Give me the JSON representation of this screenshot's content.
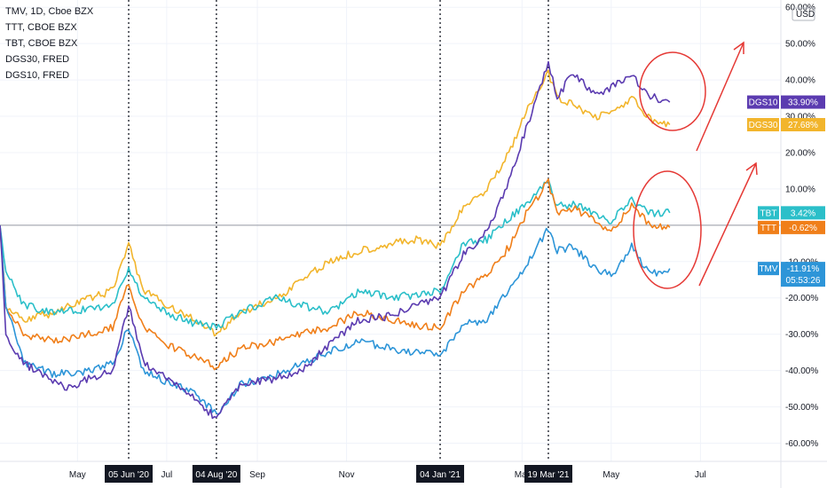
{
  "legend": [
    "TMV, 1D, Cboe BZX",
    "TTT, CBOE BZX",
    "TBT, CBOE BZX",
    "DGS30, FRED",
    "DGS10, FRED"
  ],
  "currency": "USD",
  "colors": {
    "DGS10": "#5b3bb0",
    "DGS30": "#f2b52c",
    "TBT": "#2bbfc9",
    "TTT": "#f07f1a",
    "TMV": "#2d95d8",
    "annot": "#e53935"
  },
  "chart_data": {
    "type": "line",
    "y_tick_labels": [
      "60.00%",
      "50.00%",
      "40.00%",
      "30.00%",
      "20.00%",
      "10.00%",
      "-10.00%",
      "-20.00%",
      "-30.00%",
      "-40.00%",
      "-50.00%",
      "-60.00%"
    ],
    "y_ticks": [
      60,
      50,
      40,
      30,
      20,
      10,
      -10,
      -20,
      -30,
      -40,
      -50,
      -60
    ],
    "ylim": [
      -65,
      62
    ],
    "x_tick_labels": [
      {
        "label": "May",
        "date": "2020-05-01"
      },
      {
        "label": "Jul",
        "date": "2020-07-01"
      },
      {
        "label": "Sep",
        "date": "2020-09-01"
      },
      {
        "label": "Nov",
        "date": "2020-11-01"
      },
      {
        "label": "Mar",
        "date": "2021-03-01"
      },
      {
        "label": "May",
        "date": "2021-05-01"
      },
      {
        "label": "Jul",
        "date": "2021-07-01"
      }
    ],
    "highlight_dates": [
      {
        "label": "05 Jun '20",
        "date": "2020-06-05"
      },
      {
        "label": "04 Aug '20",
        "date": "2020-08-04"
      },
      {
        "label": "04 Jan '21",
        "date": "2021-01-04"
      },
      {
        "label": "19 Mar '21",
        "date": "2021-03-19"
      }
    ],
    "xlim": [
      "2020-03-09",
      "2021-08-25"
    ],
    "series": [
      {
        "name": "DGS10",
        "last": "33.90%",
        "points": [
          [
            "2020-03-09",
            0
          ],
          [
            "2020-03-13",
            -30
          ],
          [
            "2020-03-25",
            -38
          ],
          [
            "2020-04-10",
            -42
          ],
          [
            "2020-04-25",
            -45
          ],
          [
            "2020-05-10",
            -42
          ],
          [
            "2020-05-25",
            -40
          ],
          [
            "2020-06-05",
            -22
          ],
          [
            "2020-06-15",
            -38
          ],
          [
            "2020-07-01",
            -42
          ],
          [
            "2020-07-20",
            -48
          ],
          [
            "2020-08-04",
            -53
          ],
          [
            "2020-08-20",
            -44
          ],
          [
            "2020-09-15",
            -42
          ],
          [
            "2020-10-01",
            -40
          ],
          [
            "2020-10-20",
            -33
          ],
          [
            "2020-11-10",
            -26
          ],
          [
            "2020-12-01",
            -25
          ],
          [
            "2020-12-20",
            -22
          ],
          [
            "2021-01-04",
            -20
          ],
          [
            "2021-01-20",
            -8
          ],
          [
            "2021-02-05",
            -2
          ],
          [
            "2021-02-20",
            12
          ],
          [
            "2021-03-05",
            28
          ],
          [
            "2021-03-19",
            45
          ],
          [
            "2021-03-25",
            35
          ],
          [
            "2021-04-05",
            42
          ],
          [
            "2021-04-20",
            36
          ],
          [
            "2021-05-01",
            38
          ],
          [
            "2021-05-15",
            42
          ],
          [
            "2021-05-25",
            36
          ],
          [
            "2021-06-01",
            35
          ],
          [
            "2021-06-10",
            33.9
          ]
        ]
      },
      {
        "name": "DGS30",
        "last": "27.68%",
        "points": [
          [
            "2020-03-09",
            0
          ],
          [
            "2020-03-13",
            -22
          ],
          [
            "2020-03-25",
            -26
          ],
          [
            "2020-04-15",
            -24
          ],
          [
            "2020-05-10",
            -20
          ],
          [
            "2020-05-25",
            -18
          ],
          [
            "2020-06-05",
            -5
          ],
          [
            "2020-06-15",
            -18
          ],
          [
            "2020-07-01",
            -22
          ],
          [
            "2020-07-20",
            -26
          ],
          [
            "2020-08-04",
            -30
          ],
          [
            "2020-08-20",
            -24
          ],
          [
            "2020-09-15",
            -20
          ],
          [
            "2020-10-01",
            -15
          ],
          [
            "2020-10-20",
            -10
          ],
          [
            "2020-11-10",
            -7
          ],
          [
            "2020-12-01",
            -5
          ],
          [
            "2020-12-20",
            -4
          ],
          [
            "2021-01-04",
            -6
          ],
          [
            "2021-01-20",
            5
          ],
          [
            "2021-02-05",
            10
          ],
          [
            "2021-02-20",
            20
          ],
          [
            "2021-03-05",
            32
          ],
          [
            "2021-03-19",
            42
          ],
          [
            "2021-03-25",
            35
          ],
          [
            "2021-04-05",
            33
          ],
          [
            "2021-04-20",
            30
          ],
          [
            "2021-05-01",
            31
          ],
          [
            "2021-05-15",
            35
          ],
          [
            "2021-05-25",
            30
          ],
          [
            "2021-06-01",
            28
          ],
          [
            "2021-06-10",
            27.68
          ]
        ]
      },
      {
        "name": "TBT",
        "last": "3.42%",
        "points": [
          [
            "2020-03-09",
            0
          ],
          [
            "2020-03-13",
            -12
          ],
          [
            "2020-03-25",
            -22
          ],
          [
            "2020-04-15",
            -24
          ],
          [
            "2020-05-10",
            -23
          ],
          [
            "2020-05-25",
            -22
          ],
          [
            "2020-06-05",
            -12
          ],
          [
            "2020-06-15",
            -20
          ],
          [
            "2020-07-01",
            -24
          ],
          [
            "2020-07-20",
            -27
          ],
          [
            "2020-08-04",
            -28
          ],
          [
            "2020-08-20",
            -24
          ],
          [
            "2020-09-15",
            -20
          ],
          [
            "2020-10-01",
            -22
          ],
          [
            "2020-10-20",
            -24
          ],
          [
            "2020-11-10",
            -18
          ],
          [
            "2020-12-01",
            -20
          ],
          [
            "2020-12-20",
            -19
          ],
          [
            "2021-01-04",
            -18
          ],
          [
            "2021-01-20",
            -5
          ],
          [
            "2021-02-05",
            -4
          ],
          [
            "2021-02-20",
            2
          ],
          [
            "2021-03-05",
            6
          ],
          [
            "2021-03-19",
            12
          ],
          [
            "2021-03-25",
            5
          ],
          [
            "2021-04-05",
            6
          ],
          [
            "2021-04-20",
            3
          ],
          [
            "2021-05-01",
            1
          ],
          [
            "2021-05-15",
            7
          ],
          [
            "2021-05-25",
            4
          ],
          [
            "2021-06-01",
            3
          ],
          [
            "2021-06-10",
            3.42
          ]
        ]
      },
      {
        "name": "TTT",
        "last": "-0.62%",
        "points": [
          [
            "2020-03-09",
            0
          ],
          [
            "2020-03-13",
            -22
          ],
          [
            "2020-03-25",
            -30
          ],
          [
            "2020-04-15",
            -32
          ],
          [
            "2020-05-10",
            -30
          ],
          [
            "2020-05-25",
            -28
          ],
          [
            "2020-06-05",
            -16
          ],
          [
            "2020-06-15",
            -28
          ],
          [
            "2020-07-01",
            -33
          ],
          [
            "2020-07-20",
            -36
          ],
          [
            "2020-08-04",
            -39
          ],
          [
            "2020-08-20",
            -34
          ],
          [
            "2020-09-15",
            -32
          ],
          [
            "2020-10-01",
            -30
          ],
          [
            "2020-10-20",
            -28
          ],
          [
            "2020-11-10",
            -24
          ],
          [
            "2020-12-01",
            -26
          ],
          [
            "2020-12-20",
            -28
          ],
          [
            "2021-01-04",
            -28
          ],
          [
            "2021-01-20",
            -18
          ],
          [
            "2021-02-05",
            -14
          ],
          [
            "2021-02-20",
            -6
          ],
          [
            "2021-03-05",
            4
          ],
          [
            "2021-03-19",
            12
          ],
          [
            "2021-03-25",
            3
          ],
          [
            "2021-04-05",
            5
          ],
          [
            "2021-04-20",
            1
          ],
          [
            "2021-05-01",
            -2
          ],
          [
            "2021-05-15",
            6
          ],
          [
            "2021-05-25",
            1
          ],
          [
            "2021-06-01",
            0
          ],
          [
            "2021-06-10",
            -0.62
          ]
        ]
      },
      {
        "name": "TMV",
        "last": "-11.91%",
        "points": [
          [
            "2020-03-09",
            0
          ],
          [
            "2020-03-13",
            -22
          ],
          [
            "2020-03-25",
            -38
          ],
          [
            "2020-04-15",
            -41
          ],
          [
            "2020-05-10",
            -40
          ],
          [
            "2020-05-25",
            -38
          ],
          [
            "2020-06-05",
            -28
          ],
          [
            "2020-06-15",
            -40
          ],
          [
            "2020-07-01",
            -43
          ],
          [
            "2020-07-20",
            -46
          ],
          [
            "2020-08-04",
            -52
          ],
          [
            "2020-08-20",
            -44
          ],
          [
            "2020-09-15",
            -41
          ],
          [
            "2020-10-01",
            -38
          ],
          [
            "2020-10-20",
            -35
          ],
          [
            "2020-11-10",
            -32
          ],
          [
            "2020-12-01",
            -34
          ],
          [
            "2020-12-20",
            -35
          ],
          [
            "2021-01-04",
            -36
          ],
          [
            "2021-01-20",
            -27
          ],
          [
            "2021-02-05",
            -26
          ],
          [
            "2021-02-20",
            -18
          ],
          [
            "2021-03-05",
            -10
          ],
          [
            "2021-03-19",
            -1
          ],
          [
            "2021-03-25",
            -7
          ],
          [
            "2021-04-05",
            -6
          ],
          [
            "2021-04-20",
            -12
          ],
          [
            "2021-05-01",
            -14
          ],
          [
            "2021-05-15",
            -6
          ],
          [
            "2021-05-25",
            -12
          ],
          [
            "2021-06-01",
            -13
          ],
          [
            "2021-06-10",
            -11.91
          ]
        ]
      }
    ],
    "price_tags": [
      {
        "name": "DGS10",
        "value": "33.90%"
      },
      {
        "name": "DGS30",
        "value": "27.68%"
      },
      {
        "name": "TBT",
        "value": "3.42%"
      },
      {
        "name": "TTT",
        "value": "-0.62%"
      },
      {
        "name": "TMV",
        "value": "-11.91%",
        "countdown": "05:53:26"
      }
    ]
  }
}
